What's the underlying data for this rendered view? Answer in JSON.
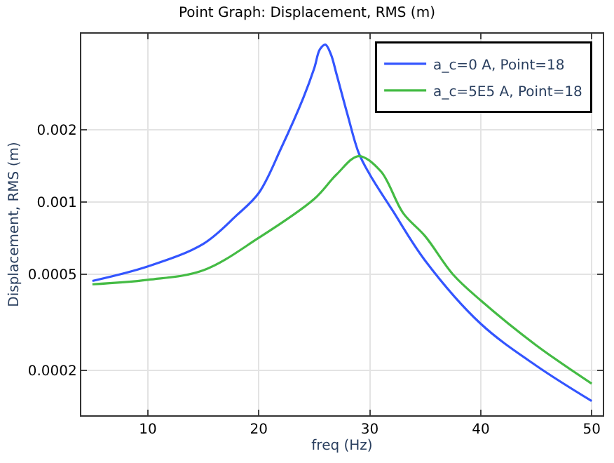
{
  "chart_data": {
    "type": "line",
    "title": "Point Graph: Displacement, RMS (m)",
    "xlabel": "freq (Hz)",
    "ylabel": "Displacement, RMS (m)",
    "log": "y",
    "grid": true,
    "legend": "top right",
    "marker": "none",
    "line_style": "solid",
    "xlim": [
      4,
      51
    ],
    "xticks": [
      10,
      20,
      30,
      40,
      50
    ],
    "ylim": [
      0.00013,
      0.005
    ],
    "yticks": [
      0.0002,
      0.0005,
      0.001,
      0.002
    ],
    "series": [
      {
        "name": "a_c=0 A, Point=18",
        "color": "#3355ff",
        "x": [
          5,
          10,
          15,
          18,
          20,
          22,
          24,
          25,
          25.5,
          26,
          26.5,
          27,
          28,
          29,
          30,
          32,
          35,
          40,
          45,
          50
        ],
        "values": [
          0.00047,
          0.00054,
          0.00067,
          0.00088,
          0.00109,
          0.00167,
          0.0027,
          0.0036,
          0.0043,
          0.0045,
          0.0041,
          0.0034,
          0.0023,
          0.0016,
          0.0013,
          0.00093,
          0.00057,
          0.000312,
          0.000209,
          0.000149
        ]
      },
      {
        "name": "a_c=5E5 A, Point=18",
        "color": "#44bb44",
        "x": [
          5,
          10,
          15,
          20,
          25,
          27,
          29,
          31,
          33,
          35,
          37.5,
          40,
          45,
          50
        ],
        "values": [
          0.000455,
          0.000475,
          0.00052,
          0.00071,
          0.00103,
          0.0013,
          0.00155,
          0.00134,
          0.0009,
          0.00072,
          0.0005,
          0.00039,
          0.000254,
          0.000176
        ]
      }
    ]
  }
}
